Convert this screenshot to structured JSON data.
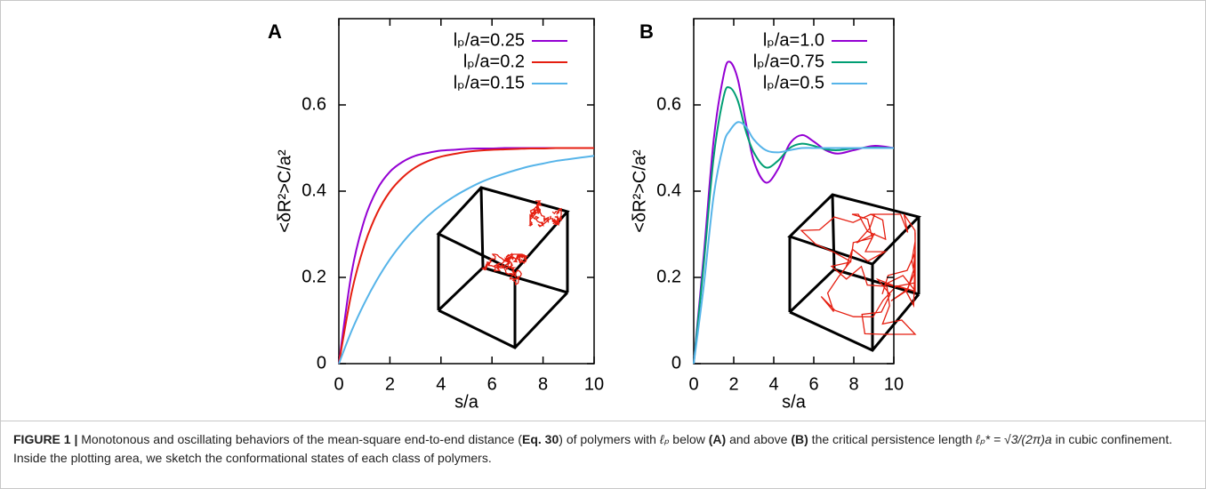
{
  "chart_data": [
    {
      "type": "line",
      "panel_label": "A",
      "xlabel": "s/a",
      "ylabel": "<δR²>C/a²",
      "x": [
        0,
        0.5,
        1,
        1.5,
        2,
        2.5,
        3,
        3.5,
        4,
        4.5,
        5,
        5.5,
        6,
        6.5,
        7,
        7.5,
        8,
        8.5,
        9,
        9.5,
        10
      ],
      "series": [
        {
          "name": "lₚ/a=0.25",
          "color": "#9400d3",
          "values": [
            0,
            0.211,
            0.333,
            0.404,
            0.445,
            0.468,
            0.482,
            0.489,
            0.494,
            0.496,
            0.498,
            0.499,
            0.499,
            0.5,
            0.5,
            0.5,
            0.5,
            0.5,
            0.5,
            0.5,
            0.5
          ]
        },
        {
          "name": "lₚ/a=0.2",
          "color": "#e51e10",
          "values": [
            0,
            0.165,
            0.275,
            0.349,
            0.399,
            0.432,
            0.455,
            0.47,
            0.48,
            0.486,
            0.491,
            0.494,
            0.496,
            0.497,
            0.498,
            0.499,
            0.499,
            0.5,
            0.5,
            0.5,
            0.5
          ]
        },
        {
          "name": "lₚ/a=0.15",
          "color": "#56b4e9",
          "values": [
            0,
            0.076,
            0.14,
            0.195,
            0.242,
            0.281,
            0.314,
            0.343,
            0.367,
            0.387,
            0.404,
            0.419,
            0.431,
            0.441,
            0.45,
            0.458,
            0.464,
            0.47,
            0.474,
            0.478,
            0.482
          ]
        }
      ],
      "xlim": [
        0,
        10
      ],
      "xticks": [
        0,
        2,
        4,
        6,
        8,
        10
      ],
      "ylim": [
        0,
        0.8
      ],
      "yticks": [
        0,
        0.2,
        0.4,
        0.6
      ],
      "legend": "upper right"
    },
    {
      "type": "line",
      "panel_label": "B",
      "xlabel": "s/a",
      "ylabel": "<δR²>C/a²",
      "x": [
        0,
        0.5,
        1,
        1.5,
        1.8,
        2.2,
        2.6,
        3,
        3.6,
        4.2,
        4.8,
        5.4,
        6,
        6.6,
        7.2,
        8,
        9,
        10
      ],
      "series": [
        {
          "name": "lₚ/a=1.0",
          "color": "#9400d3",
          "values": [
            0,
            0.25,
            0.52,
            0.67,
            0.7,
            0.66,
            0.56,
            0.47,
            0.42,
            0.45,
            0.51,
            0.53,
            0.515,
            0.495,
            0.487,
            0.495,
            0.505,
            0.5
          ]
        },
        {
          "name": "lₚ/a=0.75",
          "color": "#009e73",
          "values": [
            0,
            0.23,
            0.48,
            0.62,
            0.64,
            0.61,
            0.54,
            0.49,
            0.455,
            0.47,
            0.5,
            0.51,
            0.505,
            0.497,
            0.495,
            0.499,
            0.501,
            0.5
          ]
        },
        {
          "name": "lₚ/a=0.5",
          "color": "#56b4e9",
          "values": [
            0,
            0.18,
            0.39,
            0.51,
            0.54,
            0.56,
            0.55,
            0.52,
            0.495,
            0.49,
            0.495,
            0.5,
            0.5,
            0.5,
            0.5,
            0.5,
            0.5,
            0.5
          ]
        }
      ],
      "xlim": [
        0,
        10
      ],
      "xticks": [
        0,
        2,
        4,
        6,
        8,
        10
      ],
      "ylim": [
        0,
        0.8
      ],
      "yticks": [
        0,
        0.2,
        0.4,
        0.6
      ],
      "legend": "upper right"
    }
  ],
  "caption": [
    "FIGURE 1 |",
    " Monotonous and oscillating behaviors of the mean-square end-to-end distance (",
    "Eq. 30",
    ") of polymers with ",
    "ℓₚ",
    " below ",
    "(A)",
    " and above ",
    "(B)",
    " the critical persistence length ",
    "ℓₚ* = √3/(2π)a",
    " in cubic confinement. Inside the plotting area, we sketch the conformational states of each class of polymers."
  ]
}
